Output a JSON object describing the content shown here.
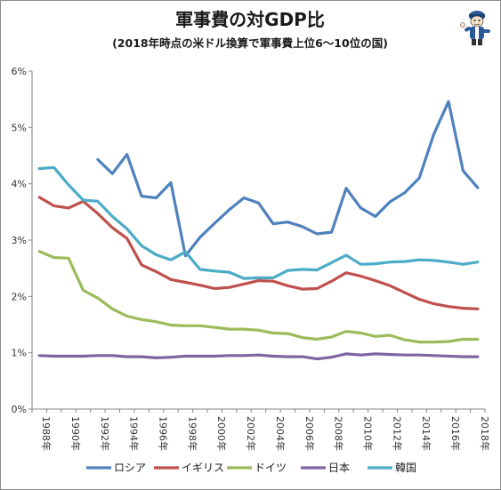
{
  "chart_data": {
    "type": "line",
    "title": "軍事費の対GDP比",
    "subtitle": "(2018年時点の米ドル換算で軍事費上位6～10位の国)",
    "xlabel": "",
    "ylabel": "",
    "x_ticks": [
      "1988年",
      "1990年",
      "1992年",
      "1994年",
      "1996年",
      "1998年",
      "2000年",
      "2002年",
      "2004年",
      "2006年",
      "2008年",
      "2010年",
      "2012年",
      "2014年",
      "2016年",
      "2018年"
    ],
    "y_ticks": [
      "0%",
      "1%",
      "2%",
      "3%",
      "4%",
      "5%",
      "6%"
    ],
    "ylim": [
      0,
      6
    ],
    "xlim": [
      1988,
      2018
    ],
    "grid": false,
    "legend_position": "bottom",
    "series": [
      {
        "name": "ロシア",
        "color": "#4f81bd",
        "x": [
          1992,
          1993,
          1994,
          1995,
          1996,
          1997,
          1998,
          1999,
          2000,
          2001,
          2002,
          2003,
          2004,
          2005,
          2006,
          2007,
          2008,
          2009,
          2010,
          2011,
          2012,
          2013,
          2014,
          2015,
          2016,
          2017,
          2018
        ],
        "values": [
          4.43,
          4.18,
          4.52,
          3.78,
          3.75,
          4.02,
          2.72,
          3.05,
          3.3,
          3.54,
          3.75,
          3.66,
          3.29,
          3.32,
          3.24,
          3.11,
          3.14,
          3.92,
          3.57,
          3.42,
          3.68,
          3.84,
          4.1,
          4.88,
          5.46,
          4.23,
          3.93
        ]
      },
      {
        "name": "イギリス",
        "color": "#c0504d",
        "x": [
          1988,
          1989,
          1990,
          1991,
          1992,
          1993,
          1994,
          1995,
          1996,
          1997,
          1998,
          1999,
          2000,
          2001,
          2002,
          2003,
          2004,
          2005,
          2006,
          2007,
          2008,
          2009,
          2010,
          2011,
          2012,
          2013,
          2014,
          2015,
          2016,
          2017,
          2018
        ],
        "values": [
          3.76,
          3.61,
          3.57,
          3.69,
          3.47,
          3.22,
          3.03,
          2.56,
          2.44,
          2.3,
          2.25,
          2.2,
          2.14,
          2.16,
          2.22,
          2.28,
          2.27,
          2.19,
          2.13,
          2.14,
          2.27,
          2.42,
          2.36,
          2.28,
          2.19,
          2.07,
          1.95,
          1.87,
          1.82,
          1.79,
          1.78
        ]
      },
      {
        "name": "ドイツ",
        "color": "#9bbb59",
        "x": [
          1988,
          1989,
          1990,
          1991,
          1992,
          1993,
          1994,
          1995,
          1996,
          1997,
          1998,
          1999,
          2000,
          2001,
          2002,
          2003,
          2004,
          2005,
          2006,
          2007,
          2008,
          2009,
          2010,
          2011,
          2012,
          2013,
          2014,
          2015,
          2016,
          2017,
          2018
        ],
        "values": [
          2.8,
          2.69,
          2.68,
          2.11,
          1.97,
          1.78,
          1.65,
          1.59,
          1.55,
          1.49,
          1.48,
          1.48,
          1.45,
          1.42,
          1.42,
          1.4,
          1.35,
          1.34,
          1.27,
          1.24,
          1.28,
          1.38,
          1.35,
          1.29,
          1.31,
          1.23,
          1.19,
          1.19,
          1.2,
          1.24,
          1.24
        ]
      },
      {
        "name": "日本",
        "color": "#8064a2",
        "x": [
          1988,
          1989,
          1990,
          1991,
          1992,
          1993,
          1994,
          1995,
          1996,
          1997,
          1998,
          1999,
          2000,
          2001,
          2002,
          2003,
          2004,
          2005,
          2006,
          2007,
          2008,
          2009,
          2010,
          2011,
          2012,
          2013,
          2014,
          2015,
          2016,
          2017,
          2018
        ],
        "values": [
          0.95,
          0.94,
          0.94,
          0.94,
          0.95,
          0.95,
          0.93,
          0.93,
          0.91,
          0.92,
          0.94,
          0.94,
          0.94,
          0.95,
          0.95,
          0.96,
          0.94,
          0.93,
          0.93,
          0.89,
          0.92,
          0.98,
          0.96,
          0.98,
          0.97,
          0.96,
          0.96,
          0.95,
          0.94,
          0.93,
          0.93
        ]
      },
      {
        "name": "韓国",
        "color": "#4bacc6",
        "x": [
          1988,
          1989,
          1990,
          1991,
          1992,
          1993,
          1994,
          1995,
          1996,
          1997,
          1998,
          1999,
          2000,
          2001,
          2002,
          2003,
          2004,
          2005,
          2006,
          2007,
          2008,
          2009,
          2010,
          2011,
          2012,
          2013,
          2014,
          2015,
          2016,
          2017,
          2018
        ],
        "values": [
          4.27,
          4.29,
          3.98,
          3.71,
          3.69,
          3.42,
          3.2,
          2.9,
          2.74,
          2.65,
          2.79,
          2.48,
          2.45,
          2.43,
          2.32,
          2.33,
          2.33,
          2.46,
          2.48,
          2.47,
          2.6,
          2.73,
          2.57,
          2.58,
          2.61,
          2.62,
          2.65,
          2.64,
          2.61,
          2.57,
          2.61
        ]
      }
    ]
  }
}
